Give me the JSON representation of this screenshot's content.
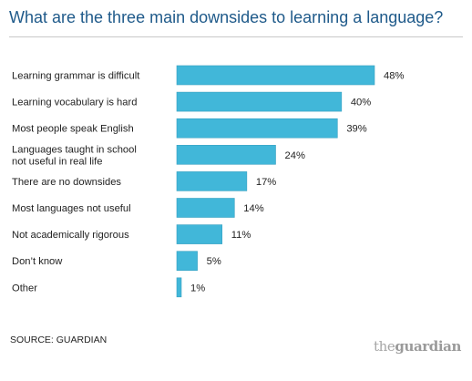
{
  "title": "What are the three main downsides to learning a language?",
  "source": "SOURCE: GUARDIAN",
  "brand": {
    "the": "the",
    "name": "guardian"
  },
  "colors": {
    "bar": "#41b7d9",
    "bar_stroke": "#3aa2c2",
    "title": "#1f5a8a"
  },
  "chart_data": {
    "type": "bar",
    "orientation": "horizontal",
    "categories": [
      [
        "Learning grammar is difficult"
      ],
      [
        "Learning vocabulary is hard"
      ],
      [
        "Most people speak English"
      ],
      [
        "Languages taught in school",
        "not useful in real life"
      ],
      [
        "There are no downsides"
      ],
      [
        "Most languages not useful"
      ],
      [
        "Not academically rigorous"
      ],
      [
        "Don’t know"
      ],
      [
        "Other"
      ]
    ],
    "values": [
      48,
      40,
      39,
      24,
      17,
      14,
      11,
      5,
      1
    ],
    "value_labels": [
      "48%",
      "40%",
      "39%",
      "24%",
      "17%",
      "14%",
      "11%",
      "5%",
      "1%"
    ],
    "xlim": [
      0,
      48
    ],
    "grid": false
  }
}
